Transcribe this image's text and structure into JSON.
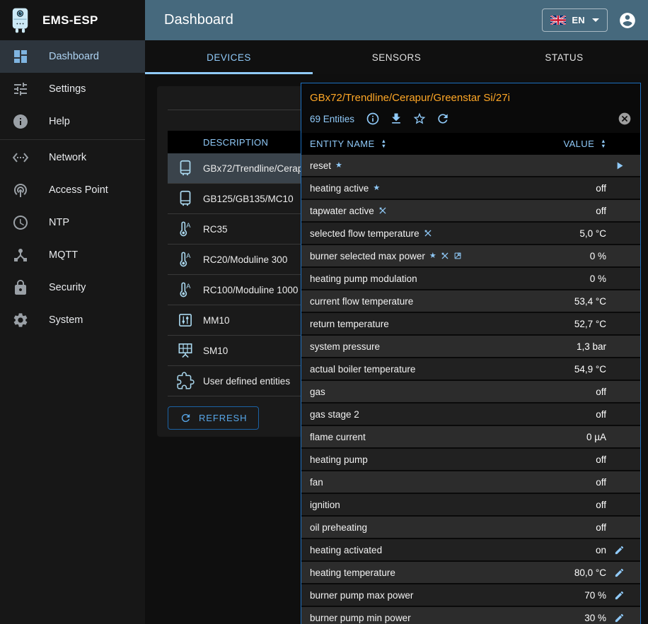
{
  "colors": {
    "accent": "#90caf9",
    "title_orange": "#ffa726",
    "appbar_teal": "#46697d",
    "dialog_border": "#1d71c2",
    "selected_row": "#3a434b"
  },
  "app": {
    "logo_title": "EMS-ESP",
    "page_title": "Dashboard"
  },
  "topbar": {
    "language": "EN",
    "flag": "uk"
  },
  "sidebar": {
    "items": [
      {
        "label": "Dashboard",
        "icon": "dashboard",
        "selected": true
      },
      {
        "label": "Settings",
        "icon": "tune"
      },
      {
        "label": "Help",
        "icon": "info"
      },
      {
        "label": "Network",
        "icon": "ethernet",
        "divider_before": true
      },
      {
        "label": "Access Point",
        "icon": "wifi-tethering"
      },
      {
        "label": "NTP",
        "icon": "clock"
      },
      {
        "label": "MQTT",
        "icon": "device-hub"
      },
      {
        "label": "Security",
        "icon": "lock"
      },
      {
        "label": "System",
        "icon": "gear"
      }
    ]
  },
  "tabs": [
    {
      "label": "DEVICES",
      "active": true
    },
    {
      "label": "SENSORS",
      "active": false
    },
    {
      "label": "STATUS",
      "active": false
    }
  ],
  "devices_panel": {
    "column_header": "DESCRIPTION",
    "refresh_button": "REFRESH",
    "rows": [
      {
        "name": "GBx72/Trendline/Cerapur/Greenstar Si/27i",
        "icon": "boiler",
        "selected": true
      },
      {
        "name": "GB125/GB135/MC10",
        "icon": "boiler",
        "selected": false
      },
      {
        "name": "RC35",
        "icon": "thermostat",
        "selected": false
      },
      {
        "name": "RC20/Moduline 300",
        "icon": "thermostat",
        "selected": false
      },
      {
        "name": "RC100/Moduline 1000",
        "icon": "thermostat",
        "selected": false
      },
      {
        "name": "MM10",
        "icon": "mixer",
        "selected": false
      },
      {
        "name": "SM10",
        "icon": "solar",
        "selected": false
      },
      {
        "name": "User defined entities",
        "icon": "puzzle",
        "selected": false
      }
    ]
  },
  "dialog": {
    "title": "GBx72/Trendline/Cerapur/Greenstar Si/27i",
    "entities_count": "69 Entities",
    "columns": {
      "name": "ENTITY NAME",
      "value": "VALUE"
    },
    "rows": [
      {
        "name": "reset",
        "badges": [
          "favorite"
        ],
        "value": "",
        "action": "run"
      },
      {
        "name": "heating active",
        "badges": [
          "favorite"
        ],
        "value": "",
        "value_text": "off"
      },
      {
        "name": "tapwater active",
        "badges": [
          "writeable"
        ],
        "value_text": "off"
      },
      {
        "name": "selected flow temperature",
        "badges": [
          "writeable"
        ],
        "value_text": "5,0 °C"
      },
      {
        "name": "burner selected max power",
        "badges": [
          "favorite",
          "writeable",
          "excluded"
        ],
        "value_text": "0 %"
      },
      {
        "name": "heating pump modulation",
        "badges": [],
        "value_text": "0 %"
      },
      {
        "name": "current flow temperature",
        "badges": [],
        "value_text": "53,4 °C"
      },
      {
        "name": "return temperature",
        "badges": [],
        "value_text": "52,7 °C"
      },
      {
        "name": "system pressure",
        "badges": [],
        "value_text": "1,3 bar"
      },
      {
        "name": "actual boiler temperature",
        "badges": [],
        "value_text": "54,9 °C"
      },
      {
        "name": "gas",
        "badges": [],
        "value_text": "off"
      },
      {
        "name": "gas stage 2",
        "badges": [],
        "value_text": "off"
      },
      {
        "name": "flame current",
        "badges": [],
        "value_text": "0 µA"
      },
      {
        "name": "heating pump",
        "badges": [],
        "value_text": "off"
      },
      {
        "name": "fan",
        "badges": [],
        "value_text": "off"
      },
      {
        "name": "ignition",
        "badges": [],
        "value_text": "off"
      },
      {
        "name": "oil preheating",
        "badges": [],
        "value_text": "off"
      },
      {
        "name": "heating activated",
        "badges": [],
        "value_text": "on",
        "action": "edit"
      },
      {
        "name": "heating temperature",
        "badges": [],
        "value_text": "80,0 °C",
        "action": "edit"
      },
      {
        "name": "burner pump max power",
        "badges": [],
        "value_text": "70 %",
        "action": "edit"
      },
      {
        "name": "burner pump min power",
        "badges": [],
        "value_text": "30 %",
        "action": "edit"
      }
    ]
  }
}
